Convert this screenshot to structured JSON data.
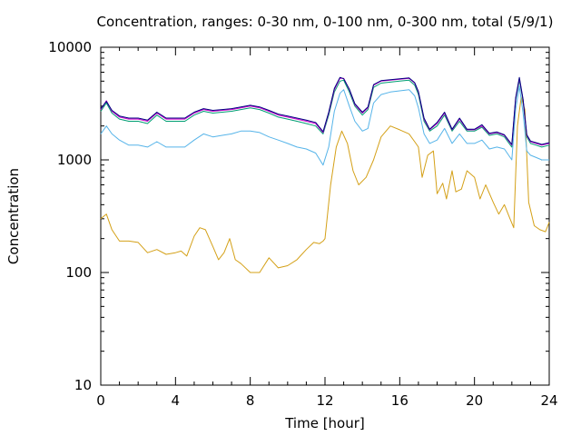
{
  "chart_data": {
    "type": "line",
    "title": "Concentration, ranges: 0-30 nm, 0-100 nm, 0-300 nm, total (5/9/1)",
    "xlabel": "Time [hour]",
    "ylabel": "Concentration",
    "xlim": [
      0,
      24
    ],
    "ylim": [
      10,
      10000
    ],
    "yscale": "log",
    "grid": false,
    "x_ticks": [
      0,
      4,
      8,
      12,
      16,
      20,
      24
    ],
    "x_tick_labels": [
      "0",
      "4",
      "8",
      "12",
      "16",
      "20",
      "24"
    ],
    "y_ticks": [
      10,
      100,
      1000,
      10000
    ],
    "y_tick_labels": [
      "10",
      "100",
      "1000",
      "10000"
    ],
    "series": [
      {
        "color": "#d4a017",
        "x": [
          0,
          0.3,
          0.6,
          1.0,
          1.5,
          2.0,
          2.5,
          3.0,
          3.5,
          4.0,
          4.3,
          4.6,
          5.0,
          5.3,
          5.6,
          6.0,
          6.3,
          6.6,
          6.9,
          7.2,
          7.5,
          8.0,
          8.5,
          9.0,
          9.5,
          10.0,
          10.5,
          11.0,
          11.4,
          11.7,
          11.9,
          12.0,
          12.3,
          12.6,
          12.9,
          13.2,
          13.5,
          13.8,
          14.2,
          14.6,
          15.0,
          15.5,
          16.0,
          16.5,
          16.8,
          17.0,
          17.2,
          17.5,
          17.8,
          18.0,
          18.3,
          18.5,
          18.8,
          19.0,
          19.3,
          19.6,
          20.0,
          20.3,
          20.6,
          21.0,
          21.3,
          21.6,
          21.9,
          22.1,
          22.3,
          22.5,
          22.7,
          22.9,
          23.2,
          23.5,
          23.8,
          24.0
        ],
        "values": [
          300,
          330,
          240,
          190,
          190,
          185,
          150,
          160,
          145,
          150,
          155,
          140,
          210,
          250,
          240,
          170,
          130,
          150,
          200,
          130,
          120,
          100,
          100,
          135,
          110,
          115,
          130,
          160,
          185,
          180,
          190,
          200,
          600,
          1300,
          1800,
          1400,
          800,
          600,
          700,
          1000,
          1600,
          2000,
          1850,
          1700,
          1450,
          1300,
          700,
          1100,
          1200,
          500,
          620,
          450,
          800,
          520,
          550,
          800,
          700,
          450,
          600,
          420,
          330,
          400,
          300,
          250,
          2000,
          3600,
          2800,
          420,
          260,
          240,
          230,
          280
        ]
      },
      {
        "color": "#56b4e9",
        "x": [
          0,
          0.3,
          0.6,
          1.0,
          1.5,
          2.0,
          2.5,
          3.0,
          3.5,
          4.0,
          4.5,
          5.0,
          5.5,
          6.0,
          6.5,
          7.0,
          7.5,
          8.0,
          8.5,
          9.0,
          9.5,
          10.0,
          10.5,
          11.0,
          11.5,
          11.9,
          12.2,
          12.5,
          12.8,
          13.0,
          13.3,
          13.6,
          14.0,
          14.3,
          14.6,
          15.0,
          15.5,
          16.0,
          16.5,
          16.8,
          17.0,
          17.3,
          17.6,
          18.0,
          18.4,
          18.8,
          19.2,
          19.6,
          20.0,
          20.4,
          20.8,
          21.2,
          21.6,
          22.0,
          22.2,
          22.4,
          22.6,
          22.8,
          23.0,
          23.3,
          23.6,
          24.0
        ],
        "values": [
          1700,
          2000,
          1700,
          1500,
          1350,
          1350,
          1300,
          1450,
          1300,
          1300,
          1300,
          1500,
          1700,
          1600,
          1650,
          1700,
          1800,
          1800,
          1750,
          1600,
          1500,
          1400,
          1300,
          1250,
          1150,
          900,
          1300,
          2700,
          3900,
          4200,
          3000,
          2200,
          1800,
          1900,
          3200,
          3800,
          4000,
          4100,
          4200,
          3700,
          2900,
          1700,
          1400,
          1500,
          1900,
          1400,
          1700,
          1400,
          1400,
          1500,
          1250,
          1300,
          1250,
          1000,
          2800,
          4500,
          2600,
          1200,
          1100,
          1050,
          1000,
          1000
        ]
      },
      {
        "color": "#009e73",
        "x": [
          0,
          0.3,
          0.6,
          1.0,
          1.5,
          2.0,
          2.5,
          3.0,
          3.5,
          4.0,
          4.5,
          5.0,
          5.5,
          6.0,
          6.5,
          7.0,
          7.5,
          8.0,
          8.5,
          9.0,
          9.5,
          10.0,
          10.5,
          11.0,
          11.5,
          11.9,
          12.2,
          12.5,
          12.8,
          13.0,
          13.3,
          13.6,
          14.0,
          14.3,
          14.6,
          15.0,
          15.5,
          16.0,
          16.5,
          16.8,
          17.0,
          17.3,
          17.6,
          18.0,
          18.4,
          18.8,
          19.2,
          19.6,
          20.0,
          20.4,
          20.8,
          21.2,
          21.6,
          22.0,
          22.2,
          22.4,
          22.6,
          22.8,
          23.0,
          23.3,
          23.6,
          24.0
        ],
        "values": [
          2700,
          3200,
          2600,
          2300,
          2200,
          2200,
          2100,
          2500,
          2200,
          2200,
          2200,
          2500,
          2700,
          2600,
          2650,
          2700,
          2800,
          2900,
          2800,
          2600,
          2400,
          2300,
          2200,
          2100,
          2000,
          1700,
          2500,
          4000,
          5000,
          5100,
          4000,
          3000,
          2500,
          2800,
          4400,
          4800,
          4900,
          5000,
          5100,
          4600,
          3800,
          2200,
          1800,
          2000,
          2500,
          1800,
          2200,
          1800,
          1800,
          1950,
          1650,
          1700,
          1600,
          1300,
          3400,
          5100,
          3300,
          1600,
          1400,
          1350,
          1300,
          1350
        ]
      },
      {
        "color": "#cc00cc",
        "x": [
          0,
          0.3,
          0.6,
          1.0,
          1.5,
          2.0,
          2.5,
          3.0,
          3.5,
          4.0,
          4.5,
          5.0,
          5.5,
          6.0,
          6.5,
          7.0,
          7.5,
          8.0,
          8.5,
          9.0,
          9.5,
          10.0,
          10.5,
          11.0,
          11.5,
          11.9,
          12.2,
          12.5,
          12.8,
          13.0,
          13.3,
          13.6,
          14.0,
          14.3,
          14.6,
          15.0,
          15.5,
          16.0,
          16.5,
          16.8,
          17.0,
          17.3,
          17.6,
          18.0,
          18.4,
          18.8,
          19.2,
          19.6,
          20.0,
          20.4,
          20.8,
          21.2,
          21.6,
          22.0,
          22.2,
          22.4,
          22.6,
          22.8,
          23.0,
          23.3,
          23.6,
          24.0
        ],
        "values": [
          2800,
          3350,
          2700,
          2400,
          2300,
          2300,
          2200,
          2600,
          2300,
          2300,
          2300,
          2600,
          2800,
          2700,
          2750,
          2800,
          2900,
          3000,
          2900,
          2700,
          2500,
          2400,
          2300,
          2200,
          2100,
          1750,
          2600,
          4200,
          5300,
          5300,
          4200,
          3100,
          2600,
          2900,
          4600,
          5000,
          5100,
          5200,
          5300,
          4800,
          4000,
          2300,
          1850,
          2100,
          2600,
          1850,
          2300,
          1850,
          1850,
          2000,
          1700,
          1750,
          1650,
          1350,
          3500,
          5300,
          3400,
          1650,
          1450,
          1400,
          1350,
          1400
        ]
      },
      {
        "color": "#000080",
        "x": [
          0,
          0.3,
          0.6,
          1.0,
          1.5,
          2.0,
          2.5,
          3.0,
          3.5,
          4.0,
          4.5,
          5.0,
          5.5,
          6.0,
          6.5,
          7.0,
          7.5,
          8.0,
          8.5,
          9.0,
          9.5,
          10.0,
          10.5,
          11.0,
          11.5,
          11.9,
          12.2,
          12.5,
          12.8,
          13.0,
          13.3,
          13.6,
          14.0,
          14.3,
          14.6,
          15.0,
          15.5,
          16.0,
          16.5,
          16.8,
          17.0,
          17.3,
          17.6,
          18.0,
          18.4,
          18.8,
          19.2,
          19.6,
          20.0,
          20.4,
          20.8,
          21.2,
          21.6,
          22.0,
          22.2,
          22.4,
          22.6,
          22.8,
          23.0,
          23.3,
          23.6,
          24.0
        ],
        "values": [
          2850,
          3300,
          2750,
          2450,
          2350,
          2350,
          2250,
          2650,
          2350,
          2350,
          2350,
          2650,
          2850,
          2750,
          2800,
          2850,
          2950,
          3050,
          2950,
          2750,
          2550,
          2450,
          2350,
          2250,
          2150,
          1780,
          2650,
          4300,
          5400,
          5250,
          4250,
          3150,
          2650,
          2950,
          4650,
          5050,
          5150,
          5250,
          5350,
          4850,
          4050,
          2350,
          1870,
          2150,
          2650,
          1870,
          2350,
          1870,
          1870,
          2050,
          1720,
          1770,
          1670,
          1370,
          3550,
          5400,
          3450,
          1670,
          1470,
          1420,
          1370,
          1420
        ]
      }
    ]
  }
}
